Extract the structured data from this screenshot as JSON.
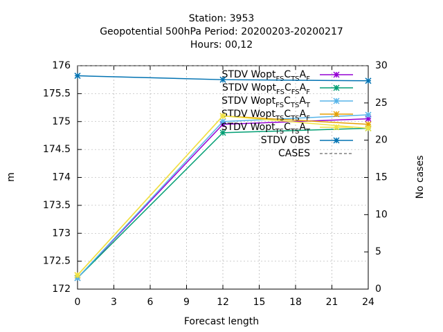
{
  "chart_data": {
    "type": "line",
    "title": [
      "Station:     3953",
      "Geopotential 500hPa   Period: 20200203-20200217",
      "Hours:  00,12"
    ],
    "x_label": "Forecast length",
    "y_label": "m",
    "y2_label": "No cases",
    "x": [
      0,
      12,
      24
    ],
    "xlim": [
      0,
      24
    ],
    "xticks": [
      0,
      3,
      6,
      9,
      12,
      15,
      18,
      21,
      24
    ],
    "ylim": [
      172,
      176
    ],
    "yticks": [
      172,
      172.5,
      173,
      173.5,
      174,
      174.5,
      175,
      175.5,
      176
    ],
    "y2lim": [
      0,
      30
    ],
    "y2ticks": [
      0,
      5,
      10,
      15,
      20,
      25,
      30
    ],
    "grid": true,
    "legend": "top right",
    "series": [
      {
        "name": [
          "STDV Wopt",
          "FS",
          "C",
          "TS",
          "A",
          "F"
        ],
        "color": "#9400d3",
        "values": [
          172.2,
          174.95,
          175.05
        ]
      },
      {
        "name": [
          "STDV Wopt",
          "FS",
          "C",
          "FS",
          "A",
          "F"
        ],
        "color": "#009e73",
        "values": [
          172.2,
          174.8,
          174.88
        ]
      },
      {
        "name": [
          "STDV Wopt",
          "FS",
          "C",
          "TS",
          "A",
          "T"
        ],
        "color": "#56b4e9",
        "values": [
          172.2,
          175.0,
          175.12
        ]
      },
      {
        "name": [
          "STDV Wopt",
          "TS",
          "C",
          "TS",
          "A",
          "F"
        ],
        "color": "#e69f00",
        "values": [
          172.25,
          175.1,
          174.95
        ]
      },
      {
        "name": [
          "STDV Wopt",
          "TS",
          "C",
          "TS",
          "A",
          "T"
        ],
        "color": "#f0e442",
        "values": [
          172.25,
          175.1,
          174.88
        ]
      },
      {
        "name": [
          "STDV OBS"
        ],
        "color": "#0072b2",
        "values": [
          175.82,
          175.75,
          175.73
        ]
      },
      {
        "name": [
          "CASES"
        ],
        "color": "#808080",
        "dashed": true,
        "axis": "y2",
        "values": [
          30,
          30,
          30
        ]
      }
    ]
  }
}
